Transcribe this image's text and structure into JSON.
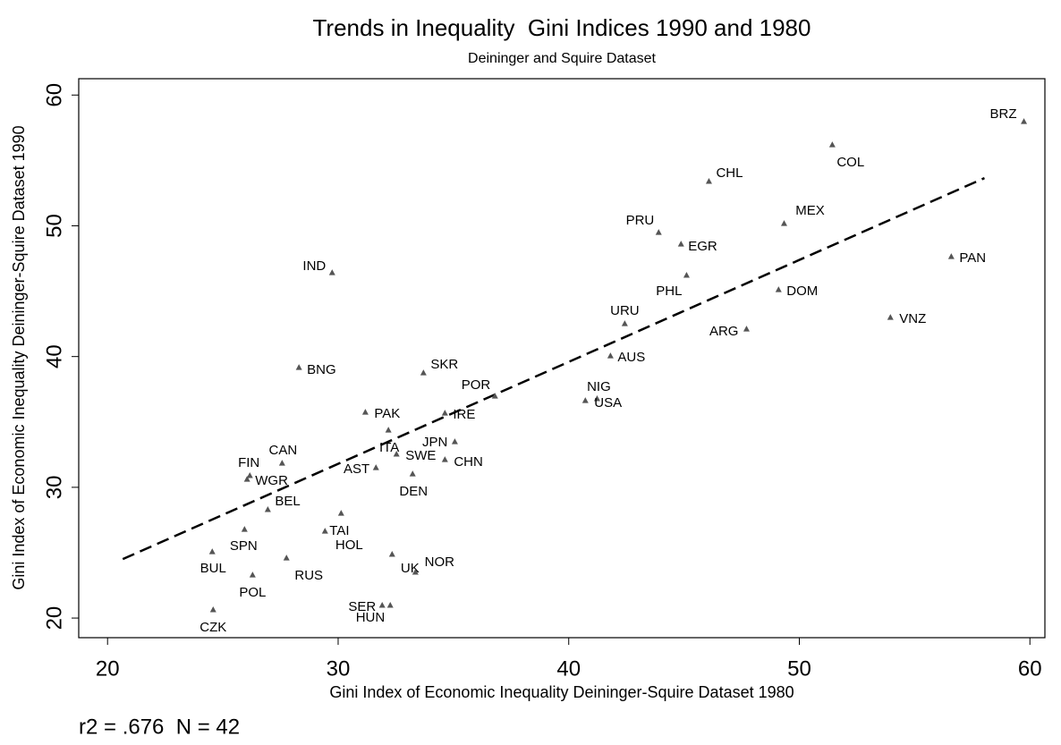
{
  "chart_data": {
    "type": "scatter",
    "title": "Trends in Inequality  Gini Indices 1990 and 1980",
    "subtitle": "Deininger and Squire Dataset",
    "x_label": "Gini Index of Economic Inequality Deininger-Squire Dataset 1980",
    "y_label": "Gini Index of Economic Inequality Deininger-Squire Dataset 1990",
    "note": "r2 = .676  N = 42",
    "xlim": [
      18.75,
      60.65
    ],
    "ylim": [
      18.5,
      61.25
    ],
    "xticks": [
      20,
      30,
      40,
      50,
      60
    ],
    "yticks": [
      20,
      30,
      40,
      50,
      60
    ],
    "series": [
      {
        "color": "#555555",
        "labels": [
          "BRZ",
          "COL",
          "CHL",
          "MEX",
          "PRU",
          "EGR",
          "PHL",
          "PAN",
          "DOM",
          "VNZ",
          "ARG",
          "URU",
          "AUS",
          "IND",
          "BNG",
          "SKR",
          "POR",
          "NIG",
          "USA",
          "IRE",
          "PAK",
          "ITA",
          "SWE",
          "AST",
          "JPN",
          "CHN",
          "DEN",
          "CAN",
          "FIN",
          "WGR",
          "BEL",
          "TAI",
          "HOL",
          "SPN",
          "BUL",
          "POL",
          "RUS",
          "UK",
          "NOR",
          "SER",
          "HUN",
          "CZK"
        ],
        "x": [
          59.74,
          51.43,
          46.08,
          49.34,
          43.9,
          44.87,
          45.11,
          56.59,
          49.1,
          53.95,
          47.71,
          42.43,
          41.81,
          29.74,
          28.3,
          33.7,
          36.8,
          41.23,
          40.72,
          34.63,
          31.18,
          32.18,
          32.53,
          31.64,
          35.06,
          34.63,
          33.23,
          27.57,
          26.05,
          26.17,
          26.95,
          29.43,
          30.13,
          25.94,
          24.54,
          26.29,
          27.76,
          32.34,
          33.35,
          31.91,
          32.26,
          24.58
        ],
        "values": [
          57.96,
          56.18,
          53.38,
          50.16,
          49.48,
          48.59,
          46.2,
          47.63,
          45.1,
          42.98,
          42.09,
          42.5,
          40.04,
          46.4,
          39.15,
          38.74,
          36.96,
          36.76,
          36.62,
          35.66,
          35.73,
          34.36,
          32.52,
          31.49,
          33.47,
          32.1,
          31.01,
          31.83,
          30.6,
          30.88,
          28.28,
          26.63,
          28.0,
          26.77,
          25.06,
          23.28,
          24.58,
          24.86,
          23.49,
          20.96,
          20.96,
          20.62
        ]
      }
    ],
    "fit_line": {
      "x": [
        20.66,
        58.03
      ],
      "y": [
        24.51,
        53.65
      ]
    }
  }
}
